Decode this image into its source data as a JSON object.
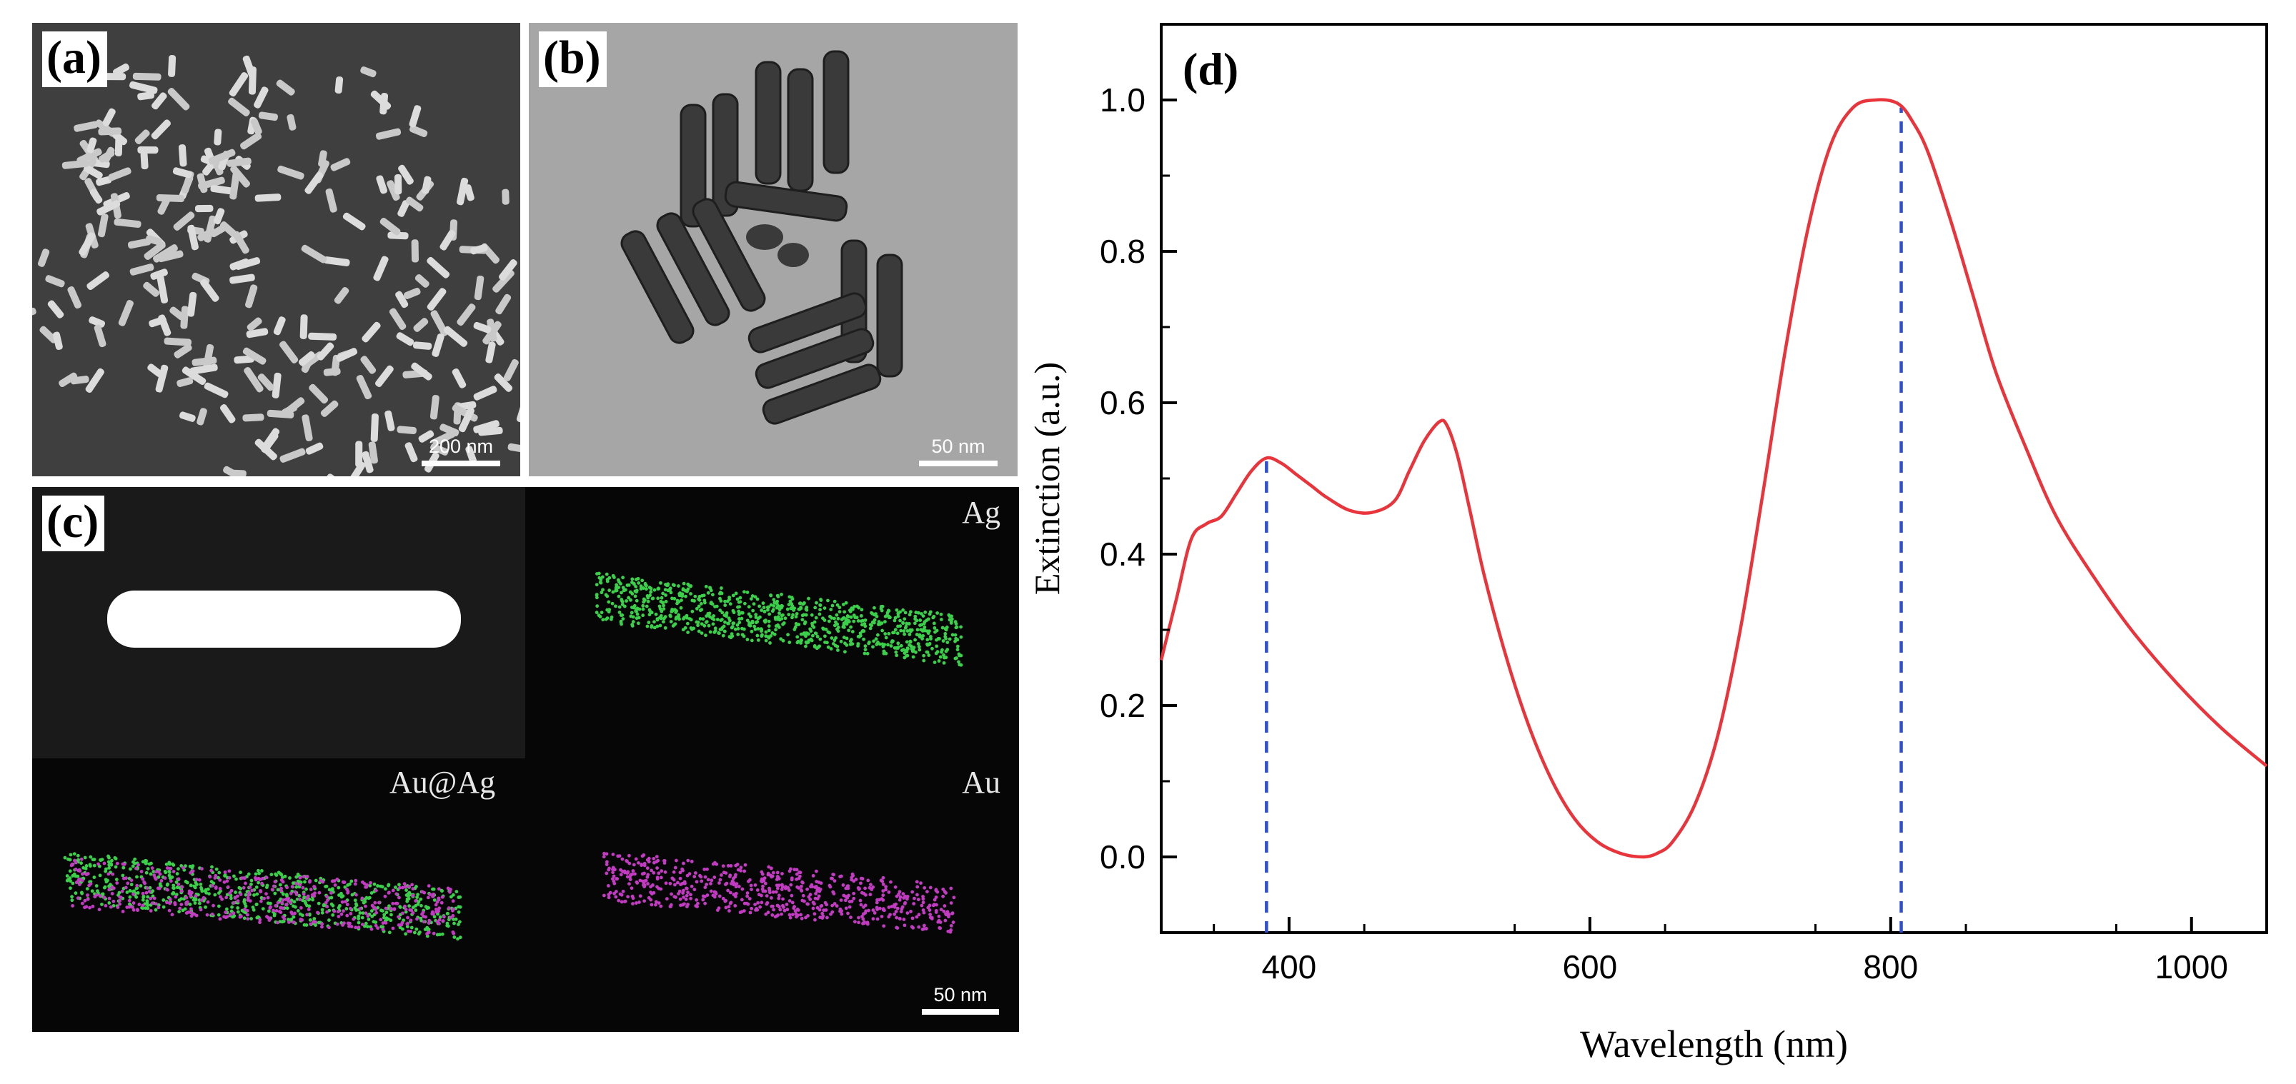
{
  "panels": {
    "a": {
      "label": "(a)",
      "scale": "200 nm"
    },
    "b": {
      "label": "(b)",
      "scale": "50 nm"
    },
    "c": {
      "label": "(c)",
      "scale": "50 nm",
      "maps": [
        "Ag",
        "Au@Ag",
        "Au"
      ]
    }
  },
  "chart_data": {
    "type": "line",
    "panel_label": "(d)",
    "title": "",
    "xlabel": "Wavelength (nm)",
    "ylabel": "Extinction (a.u.)",
    "xlim": [
      315,
      1050
    ],
    "ylim": [
      -0.1,
      1.1
    ],
    "xticks": [
      400,
      600,
      800,
      1000
    ],
    "yticks": [
      0.0,
      0.2,
      0.4,
      0.6,
      0.8,
      1.0
    ],
    "ytick_labels": [
      "0.0",
      "0.2",
      "0.4",
      "0.6",
      "0.8",
      "1.0"
    ],
    "grid": false,
    "series": [
      {
        "name": "Extinction",
        "color": "#e8343a",
        "x": [
          315,
          325,
          335,
          345,
          355,
          365,
          375,
          385,
          395,
          405,
          415,
          425,
          440,
          455,
          470,
          480,
          490,
          500,
          505,
          512,
          520,
          530,
          545,
          560,
          575,
          590,
          605,
          620,
          635,
          645,
          655,
          670,
          685,
          700,
          715,
          730,
          745,
          760,
          775,
          790,
          805,
          815,
          825,
          840,
          855,
          870,
          890,
          910,
          935,
          960,
          990,
          1020,
          1050
        ],
        "y": [
          0.26,
          0.34,
          0.42,
          0.44,
          0.45,
          0.48,
          0.51,
          0.527,
          0.52,
          0.505,
          0.49,
          0.475,
          0.458,
          0.455,
          0.47,
          0.51,
          0.55,
          0.575,
          0.57,
          0.53,
          0.46,
          0.37,
          0.26,
          0.17,
          0.1,
          0.05,
          0.02,
          0.005,
          0.0,
          0.005,
          0.02,
          0.07,
          0.16,
          0.3,
          0.48,
          0.67,
          0.83,
          0.94,
          0.99,
          1.0,
          0.995,
          0.97,
          0.93,
          0.84,
          0.74,
          0.64,
          0.54,
          0.45,
          0.37,
          0.3,
          0.23,
          0.17,
          0.12
        ]
      }
    ],
    "reference_lines": [
      {
        "x": 385,
        "color": "#2e4fcf"
      },
      {
        "x": 807,
        "color": "#2e4fcf"
      }
    ]
  }
}
